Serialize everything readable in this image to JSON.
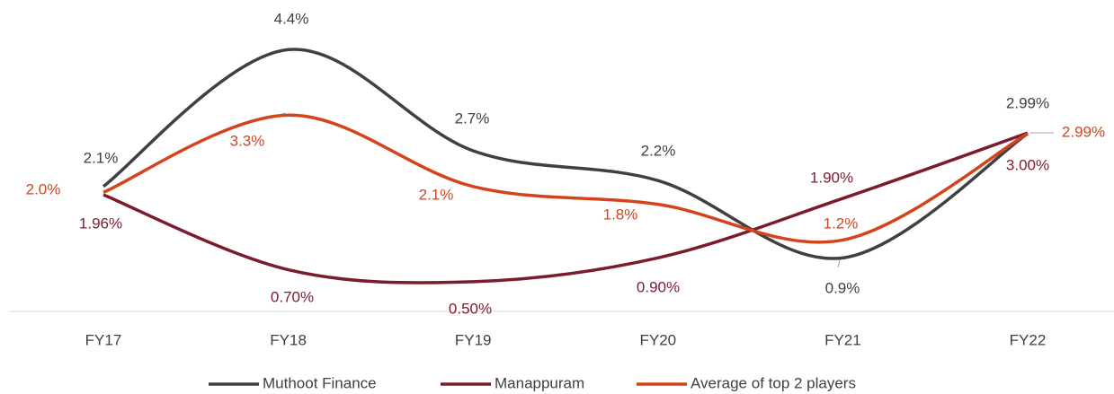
{
  "chart_data": {
    "type": "line",
    "categories": [
      "FY17",
      "FY18",
      "FY19",
      "FY20",
      "FY21",
      "FY22"
    ],
    "series": [
      {
        "name": "Muthoot Finance",
        "color": "#404040",
        "values": [
          2.1,
          4.4,
          2.7,
          2.2,
          0.9,
          2.99
        ],
        "value_labels": [
          "2.1%",
          "4.4%",
          "2.7%",
          "2.2%",
          "0.9%",
          "2.99%"
        ]
      },
      {
        "name": "Manappuram",
        "color": "#7b1c2e",
        "values": [
          1.96,
          0.7,
          0.5,
          0.9,
          1.9,
          3.0
        ],
        "value_labels": [
          "1.96%",
          "0.70%",
          "0.50%",
          "0.90%",
          "1.90%",
          "3.00%"
        ]
      },
      {
        "name": "Average of top 2 players",
        "color": "#d4441c",
        "values": [
          2.0,
          3.3,
          2.1,
          1.8,
          1.2,
          2.99
        ],
        "value_labels": [
          "2.0%",
          "3.3%",
          "2.1%",
          "1.8%",
          "1.2%",
          "2.99%"
        ]
      }
    ],
    "ylim": [
      0,
      5
    ],
    "smooth": true
  }
}
